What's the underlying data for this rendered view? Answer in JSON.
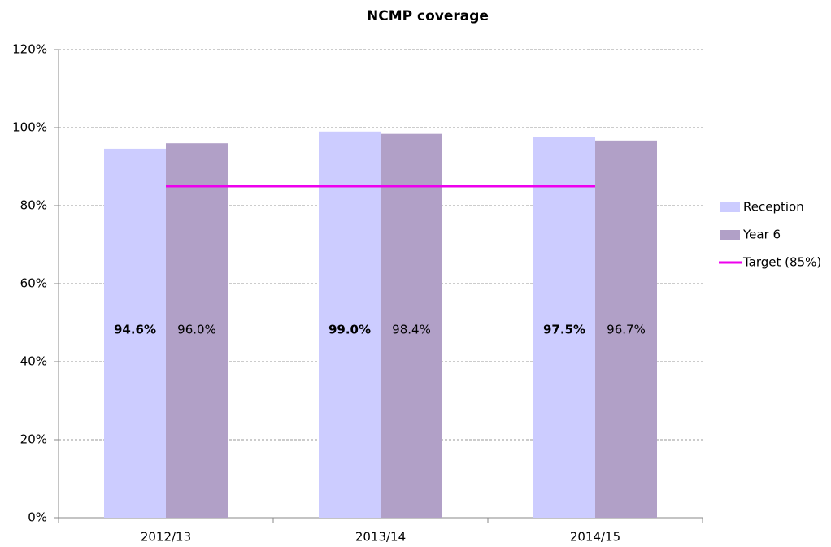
{
  "chart_data": {
    "type": "bar",
    "title": "NCMP coverage",
    "categories": [
      "2012/13",
      "2013/14",
      "2014/15"
    ],
    "series": [
      {
        "name": "Reception",
        "color": "#ccccff",
        "values": [
          94.6,
          99.0,
          97.5
        ],
        "value_labels": [
          "94.6%",
          "99.0%",
          "97.5%"
        ]
      },
      {
        "name": "Year 6",
        "color": "#b1a0c7",
        "values": [
          96.0,
          98.4,
          96.7
        ],
        "value_labels": [
          "96.0%",
          "98.4%",
          "96.7%"
        ]
      },
      {
        "name": "Target (85%)",
        "type": "line",
        "color": "#ee00ee",
        "values": [
          85,
          85,
          85
        ]
      }
    ],
    "ylim": [
      0,
      120
    ],
    "yticks": [
      {
        "value": 0,
        "label": "0%"
      },
      {
        "value": 20,
        "label": "20%"
      },
      {
        "value": 40,
        "label": "40%"
      },
      {
        "value": 60,
        "label": "60%"
      },
      {
        "value": 80,
        "label": "80%"
      },
      {
        "value": 100,
        "label": "100%"
      },
      {
        "value": 120,
        "label": "120%"
      }
    ],
    "grid": true,
    "legend": "right"
  }
}
